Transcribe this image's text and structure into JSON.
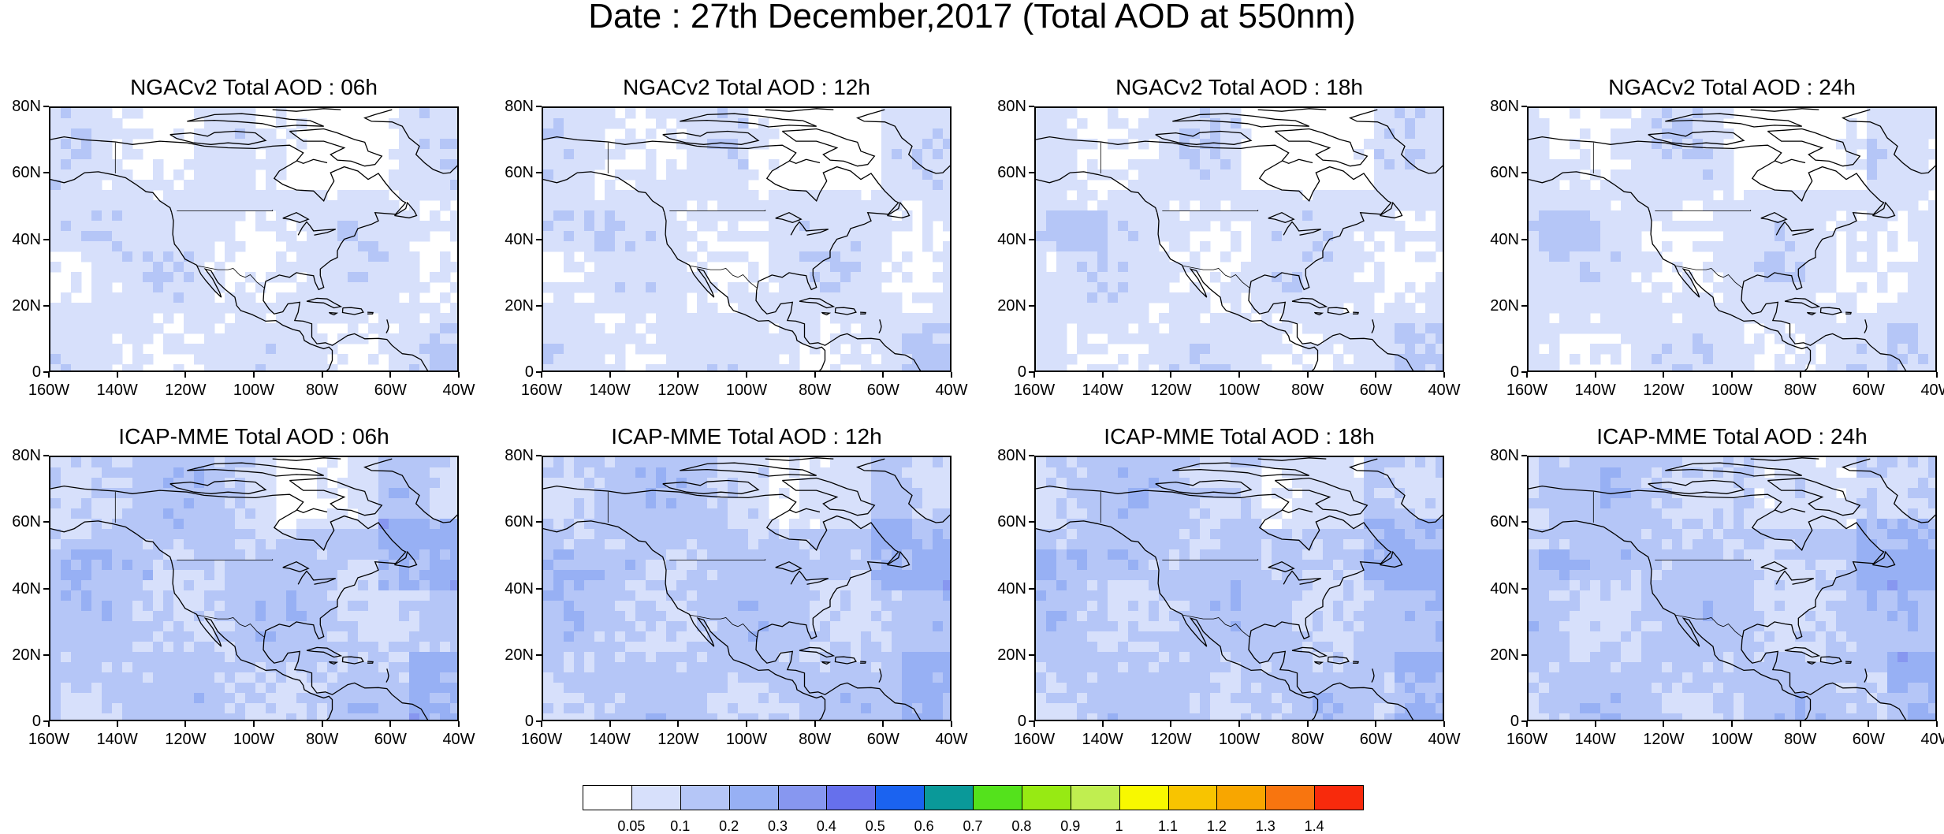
{
  "title": "Date : 27th December,2017 (Total AOD at 550nm)",
  "panels": [
    {
      "title": "NGACv2 Total AOD : 06h",
      "model": "NGACv2",
      "hour": "06h"
    },
    {
      "title": "NGACv2 Total AOD : 12h",
      "model": "NGACv2",
      "hour": "12h"
    },
    {
      "title": "NGACv2 Total AOD : 18h",
      "model": "NGACv2",
      "hour": "18h"
    },
    {
      "title": "NGACv2 Total AOD : 24h",
      "model": "NGACv2",
      "hour": "24h"
    },
    {
      "title": "ICAP-MME Total AOD : 06h",
      "model": "ICAP-MME",
      "hour": "06h"
    },
    {
      "title": "ICAP-MME Total AOD : 12h",
      "model": "ICAP-MME",
      "hour": "12h"
    },
    {
      "title": "ICAP-MME Total AOD : 18h",
      "model": "ICAP-MME",
      "hour": "18h"
    },
    {
      "title": "ICAP-MME Total AOD : 24h",
      "model": "ICAP-MME",
      "hour": "24h"
    }
  ],
  "axes": {
    "lat_ticks": [
      "80N",
      "60N",
      "40N",
      "20N",
      "0"
    ],
    "lon_ticks": [
      "160W",
      "140W",
      "120W",
      "100W",
      "80W",
      "60W",
      "40W"
    ],
    "lat_range": [
      0,
      80
    ],
    "lon_range": [
      -160,
      -40
    ]
  },
  "colorbar": {
    "labels": [
      "0.05",
      "0.1",
      "0.2",
      "0.3",
      "0.4",
      "0.5",
      "0.6",
      "0.7",
      "0.8",
      "0.9",
      "1",
      "1.1",
      "1.2",
      "1.3",
      "1.4"
    ],
    "colors": [
      "#ffffff",
      "#d7e0fb",
      "#b5c6f7",
      "#97b0f4",
      "#8797f0",
      "#6670ec",
      "#1b63f0",
      "#0a9999",
      "#54e21c",
      "#97ea13",
      "#c0ee50",
      "#f8f800",
      "#f8c400",
      "#f8a600",
      "#f8750f",
      "#f82a0c"
    ]
  },
  "palette": {
    "coastline": "#000000",
    "aod_low": "#d7e0fb",
    "aod_mid": "#b5c6f7",
    "aod_high": "#97b0f4"
  }
}
